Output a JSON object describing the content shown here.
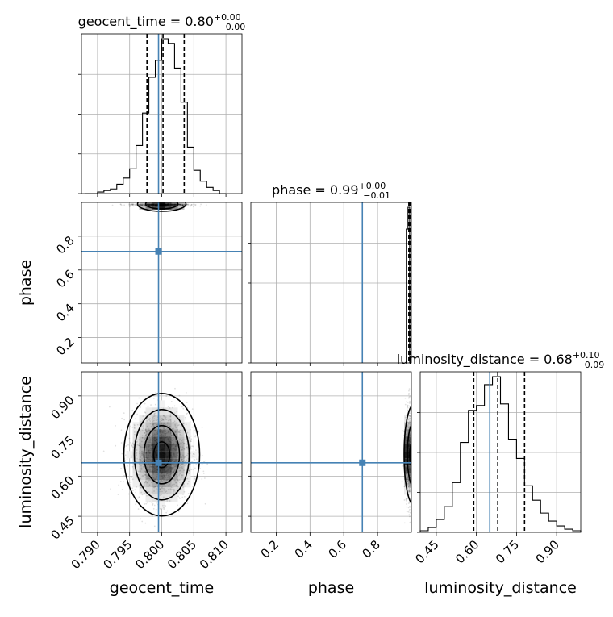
{
  "chart_data": {
    "type": "corner",
    "parameters": [
      {
        "name": "geocent_time",
        "axis_label": "geocent_time",
        "range": [
          0.7875,
          0.8125
        ],
        "ticks": [
          0.79,
          0.795,
          0.8,
          0.805,
          0.81
        ],
        "tick_labels": [
          "0.790",
          "0.795",
          "0.800",
          "0.805",
          "0.810"
        ],
        "truth": 0.7995,
        "quantiles": [
          0.7977,
          0.8002,
          0.8035
        ],
        "title": {
          "main": "geocent_time = 0.80",
          "plus": "+0.00",
          "minus": "−0.00"
        }
      },
      {
        "name": "phase",
        "axis_label": "phase",
        "range": [
          0.05,
          1.0
        ],
        "ticks": [
          0.2,
          0.4,
          0.6,
          0.8
        ],
        "tick_labels": [
          "0.2",
          "0.4",
          "0.6",
          "0.8"
        ],
        "truth": 0.71,
        "quantiles": [
          0.985,
          0.99,
          0.995
        ],
        "title": {
          "main": "phase = 0.99",
          "plus": "+0.00",
          "minus": "−0.01"
        }
      },
      {
        "name": "luminosity_distance",
        "axis_label": "luminosity_distance",
        "range": [
          0.39,
          0.99
        ],
        "ticks": [
          0.45,
          0.6,
          0.75,
          0.9
        ],
        "tick_labels": [
          "0.45",
          "0.60",
          "0.75",
          "0.90"
        ],
        "truth": 0.65,
        "quantiles": [
          0.59,
          0.68,
          0.78
        ],
        "title": {
          "main": "luminosity_distance = 0.68",
          "plus": "+0.10",
          "minus": "−0.09"
        }
      }
    ],
    "histograms": {
      "geocent_time": {
        "bins": [
          0.788,
          0.789,
          0.79,
          0.791,
          0.792,
          0.793,
          0.794,
          0.795,
          0.796,
          0.797,
          0.798,
          0.799,
          0.8,
          0.801,
          0.802,
          0.803,
          0.804,
          0.805,
          0.806,
          0.807,
          0.808,
          0.809,
          0.81
        ],
        "counts": [
          0.0,
          0.0,
          0.01,
          0.02,
          0.03,
          0.06,
          0.1,
          0.16,
          0.31,
          0.52,
          0.75,
          0.86,
          1.0,
          0.97,
          0.81,
          0.59,
          0.3,
          0.15,
          0.08,
          0.04,
          0.02,
          0.0
        ]
      },
      "phase": {
        "bins": [
          0.96,
          0.97,
          0.98,
          0.99
        ],
        "counts": [
          0.0,
          0.86,
          1.0
        ]
      },
      "luminosity_distance": {
        "bins": [
          0.39,
          0.42,
          0.45,
          0.48,
          0.51,
          0.54,
          0.57,
          0.6,
          0.63,
          0.66,
          0.69,
          0.72,
          0.75,
          0.78,
          0.81,
          0.84,
          0.87,
          0.9,
          0.93,
          0.96,
          0.99
        ],
        "counts": [
          0.01,
          0.03,
          0.08,
          0.16,
          0.31,
          0.56,
          0.76,
          0.79,
          0.92,
          0.97,
          0.8,
          0.58,
          0.46,
          0.29,
          0.2,
          0.12,
          0.07,
          0.04,
          0.02,
          0.01
        ]
      }
    },
    "contour_levels": [
      "0.5-sigma",
      "1-sigma",
      "1.5-sigma",
      "2-sigma"
    ],
    "grid": true
  }
}
